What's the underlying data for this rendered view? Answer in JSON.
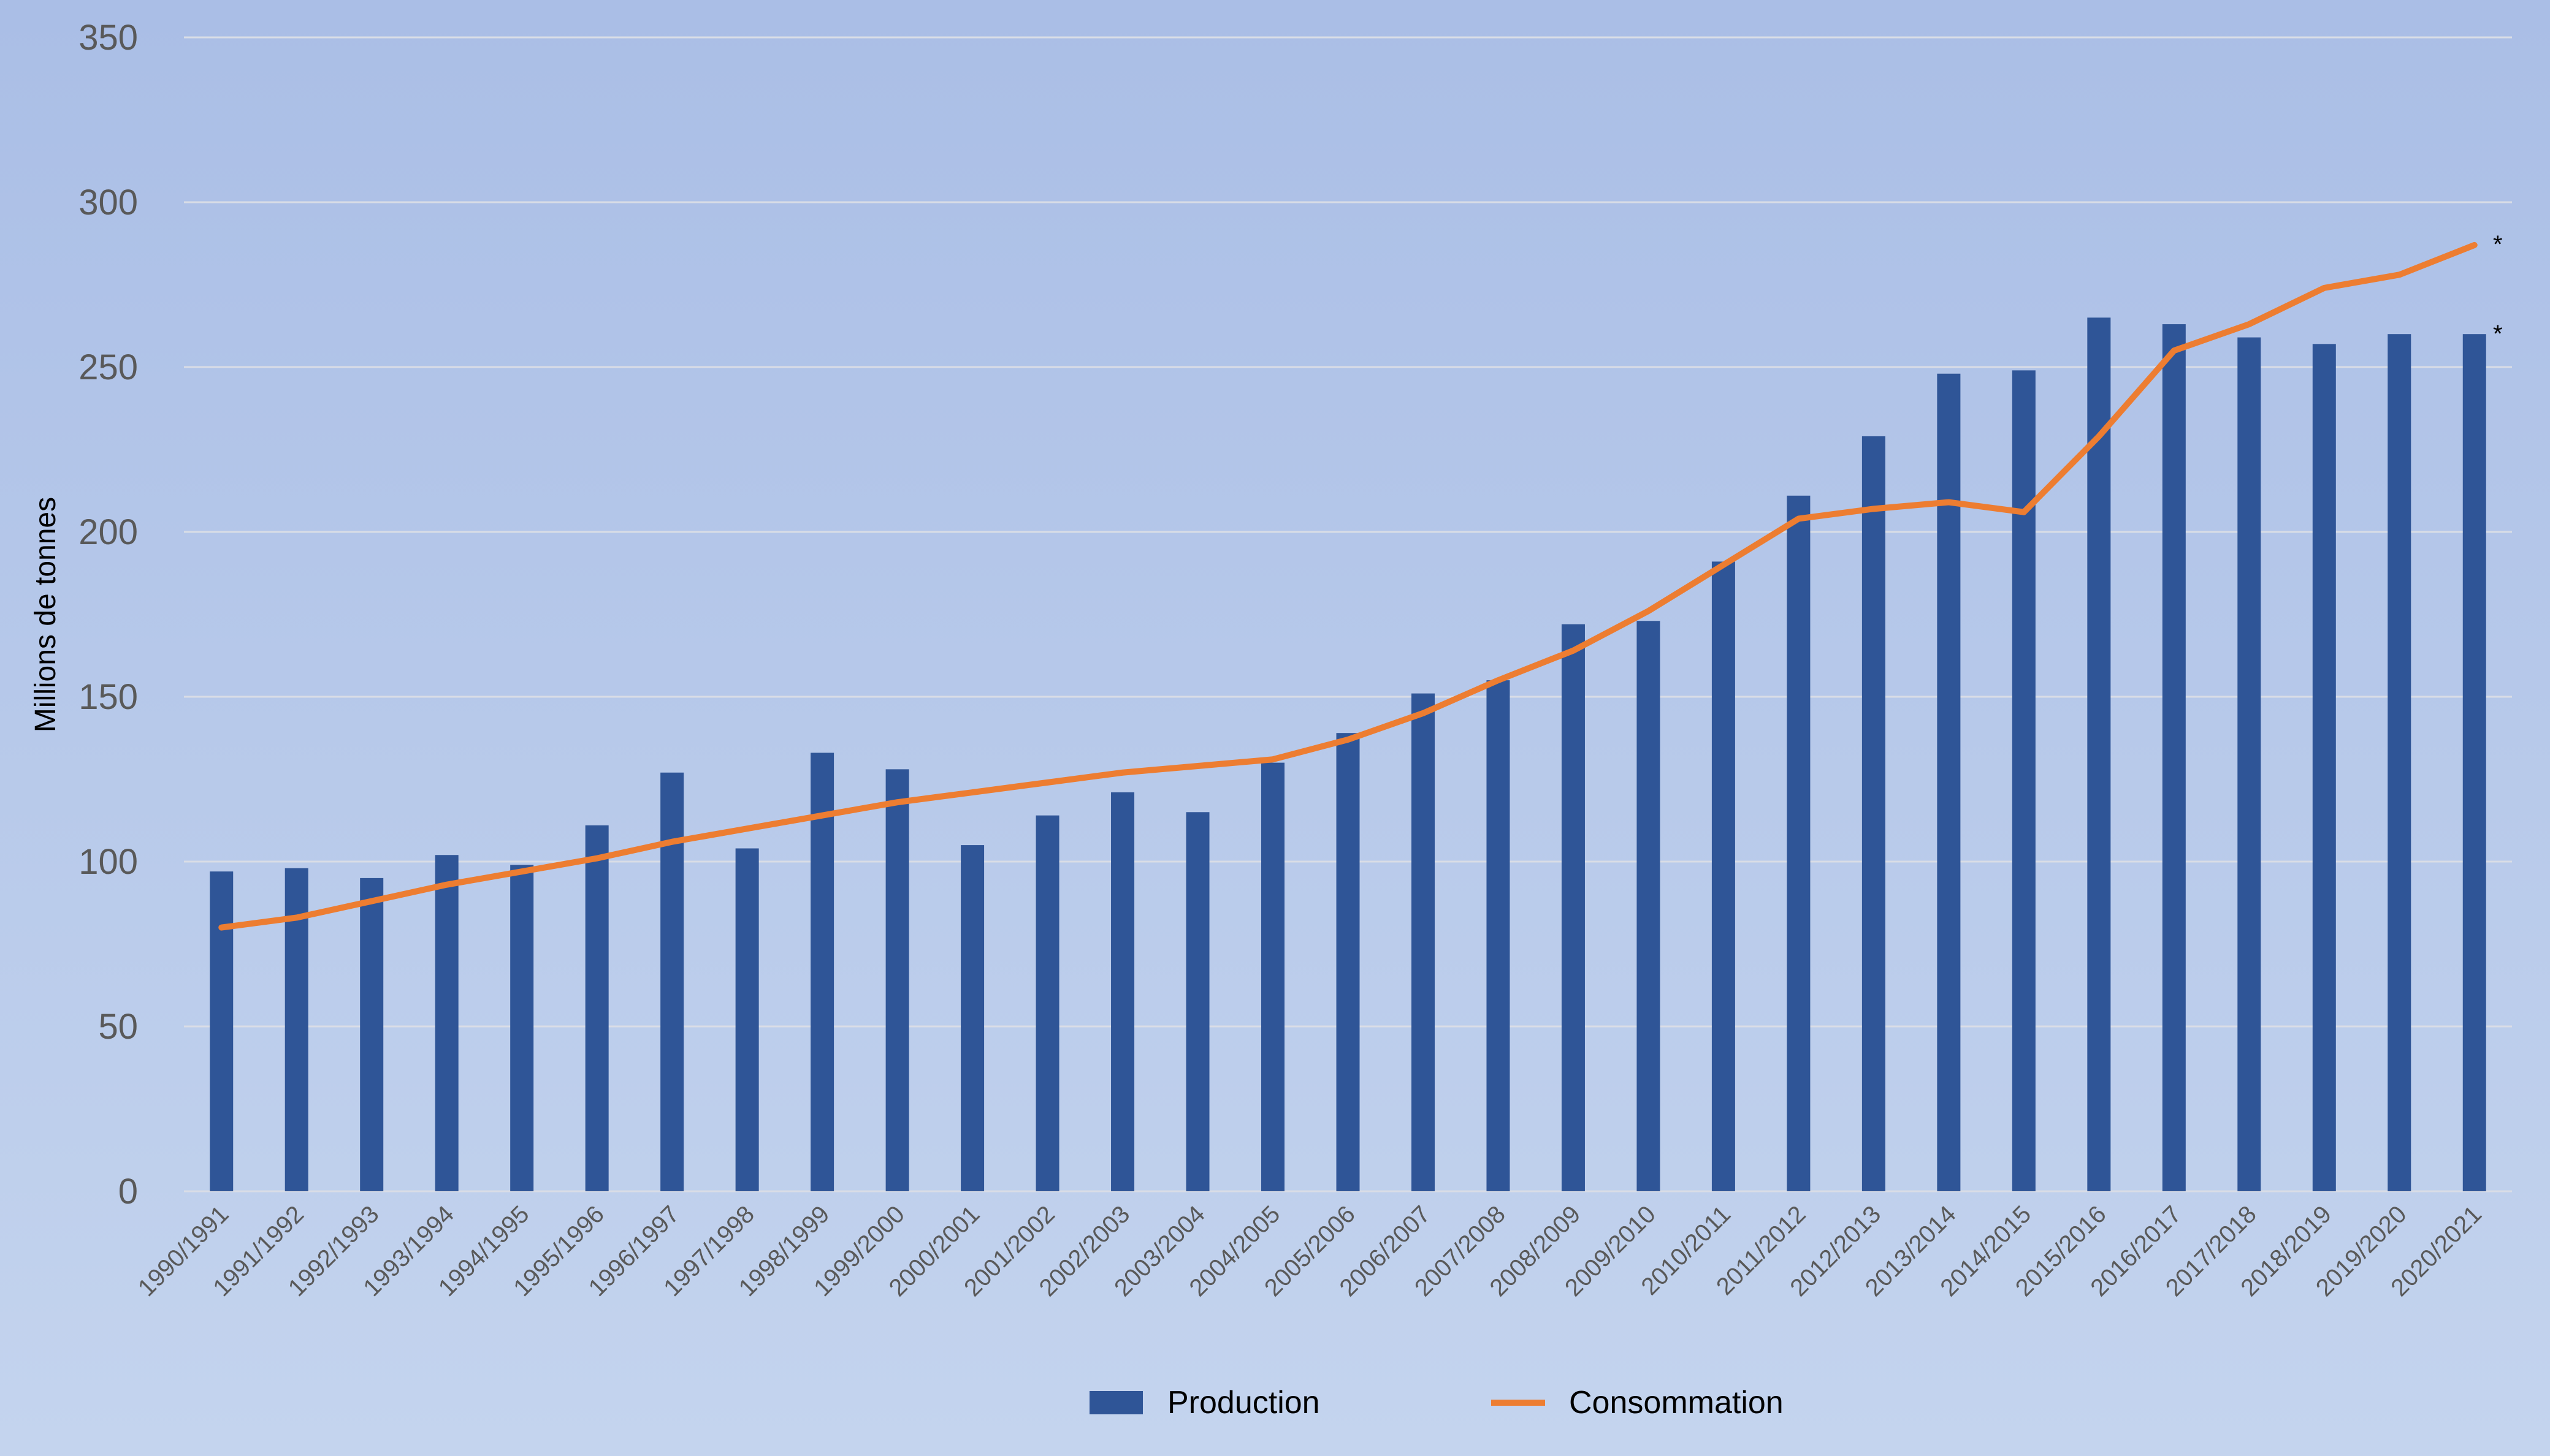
{
  "chart_data": {
    "type": "bar+line",
    "title": "",
    "xlabel": "",
    "ylabel": "Millions de tonnes",
    "ylim": [
      0,
      350
    ],
    "yticks": [
      0,
      50,
      100,
      150,
      200,
      250,
      300,
      350
    ],
    "grid": true,
    "legend": "bottom",
    "categories": [
      "1990/1991",
      "1991/1992",
      "1992/1993",
      "1993/1994",
      "1994/1995",
      "1995/1996",
      "1996/1997",
      "1997/1998",
      "1998/1999",
      "1999/2000",
      "2000/2001",
      "2001/2002",
      "2002/2003",
      "2003/2004",
      "2004/2005",
      "2005/2006",
      "2006/2007",
      "2007/2008",
      "2008/2009",
      "2009/2010",
      "2010/2011",
      "2011/2012",
      "2012/2013",
      "2013/2014",
      "2014/2015",
      "2015/2016",
      "2016/2017",
      "2017/2018",
      "2018/2019",
      "2019/2020",
      "2020/2021"
    ],
    "series": [
      {
        "name": "Production",
        "type": "bar",
        "color": "#2f5597",
        "values": [
          97,
          98,
          95,
          102,
          99,
          111,
          127,
          104,
          133,
          128,
          105,
          114,
          121,
          115,
          130,
          139,
          151,
          155,
          172,
          173,
          191,
          211,
          229,
          248,
          249,
          265,
          263,
          259,
          257,
          260,
          260
        ]
      },
      {
        "name": "Consommation",
        "type": "line",
        "color": "#ed7d31",
        "values": [
          80,
          83,
          88,
          93,
          97,
          101,
          106,
          110,
          114,
          118,
          121,
          124,
          127,
          129,
          131,
          137,
          145,
          155,
          164,
          176,
          190,
          204,
          207,
          209,
          206,
          229,
          255,
          263,
          274,
          278,
          287
        ]
      }
    ],
    "annotations": [
      "*",
      "*"
    ]
  }
}
